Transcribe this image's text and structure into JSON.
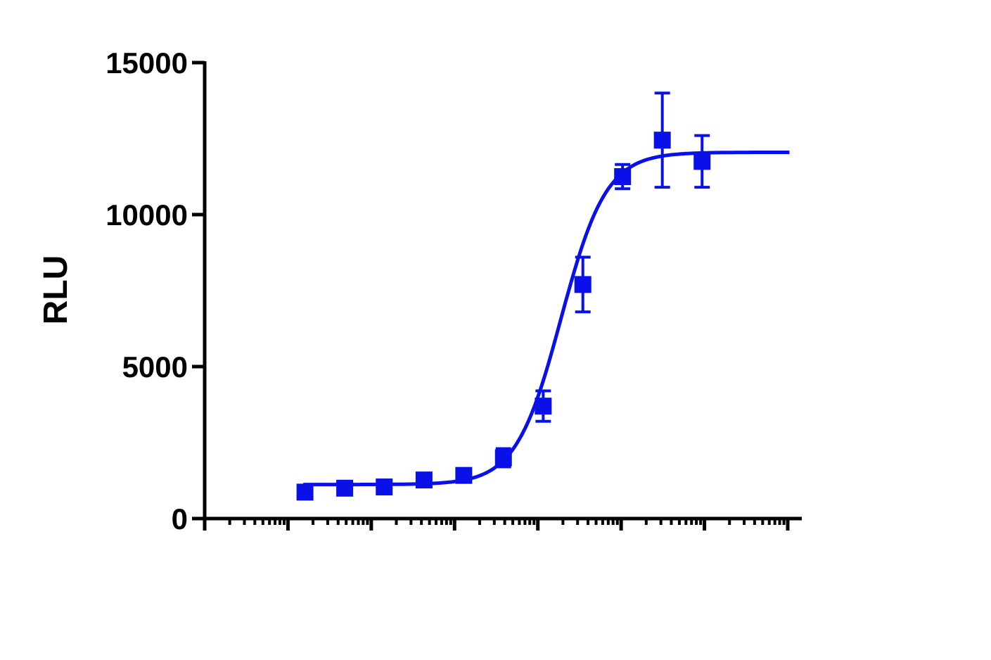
{
  "chart_data": {
    "type": "scatter",
    "title": "",
    "xlabel": "",
    "ylabel": "RLU",
    "x_scale": "log",
    "x_tick_labels_shown": false,
    "xlim": [
      0.0001,
      1000
    ],
    "ylim": [
      0,
      15000
    ],
    "y_ticks": [
      0,
      5000,
      10000,
      15000
    ],
    "y_tick_labels": [
      "0",
      "5000",
      "10000",
      "15000"
    ],
    "grid": false,
    "legend": "none",
    "series_color": "#0a10e8",
    "marker": "square",
    "series": [
      {
        "points": [
          {
            "x": 0.0016,
            "y": 870,
            "err": 60
          },
          {
            "x": 0.0048,
            "y": 1000,
            "err": 70
          },
          {
            "x": 0.0143,
            "y": 1040,
            "err": 60
          },
          {
            "x": 0.043,
            "y": 1270,
            "err": 70
          },
          {
            "x": 0.129,
            "y": 1420,
            "err": 90
          },
          {
            "x": 0.386,
            "y": 2000,
            "err": 300
          },
          {
            "x": 1.16,
            "y": 3700,
            "err": 500
          },
          {
            "x": 3.47,
            "y": 7700,
            "err": 900
          },
          {
            "x": 10.4,
            "y": 11250,
            "err": 400
          },
          {
            "x": 31.2,
            "y": 12450,
            "err": 1550
          },
          {
            "x": 93.7,
            "y": 11750,
            "err": 850
          }
        ],
        "fit": {
          "model": "4PL",
          "bottom": 1120,
          "top": 12050,
          "ec50": 1.9,
          "hill": 1.6
        }
      }
    ]
  }
}
